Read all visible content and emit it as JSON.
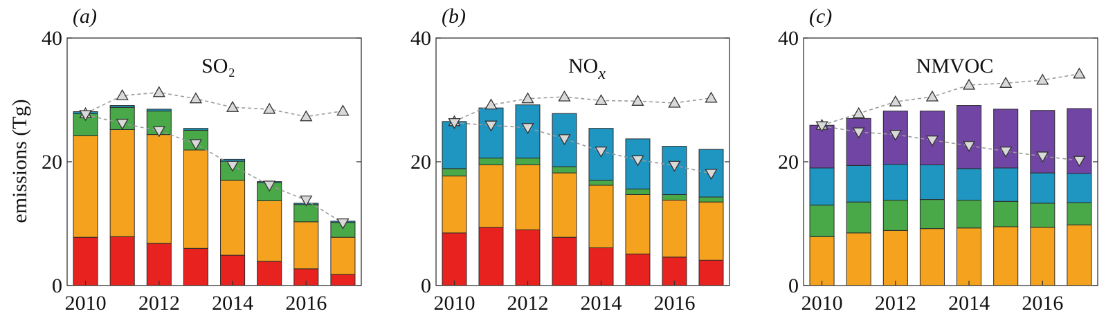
{
  "y_axis_label": "emissions (Tg)",
  "colors": {
    "red": "#e8231f",
    "orange": "#f5a31e",
    "green": "#49a848",
    "blue": "#1f96c2",
    "purple": "#7045a3"
  },
  "chart_data": [
    {
      "type": "bar",
      "stacked": true,
      "panel_label": "(a)",
      "title": "SO₂",
      "x": [
        2010,
        2011,
        2012,
        2013,
        2014,
        2015,
        2016,
        2017
      ],
      "xticks": [
        "2010",
        "2012",
        "2014",
        "2016"
      ],
      "ylim": [
        0,
        40
      ],
      "yticks": [
        "0",
        "20",
        "40"
      ],
      "series": [
        {
          "color": "#e8231f",
          "values": [
            7.8,
            7.9,
            6.8,
            6.0,
            4.9,
            3.9,
            2.7,
            1.8
          ]
        },
        {
          "color": "#f5a31e",
          "values": [
            16.4,
            17.3,
            17.6,
            15.9,
            12.1,
            9.8,
            7.6,
            6.0
          ]
        },
        {
          "color": "#49a848",
          "values": [
            3.6,
            3.6,
            3.8,
            3.2,
            3.1,
            2.9,
            2.8,
            2.4
          ]
        },
        {
          "color": "#1f96c2",
          "values": [
            0.3,
            0.3,
            0.3,
            0.3,
            0.3,
            0.2,
            0.2,
            0.2
          ]
        }
      ],
      "trend_up": [
        27.8,
        30.7,
        31.2,
        30.2,
        28.8,
        28.5,
        27.3,
        28.2
      ],
      "trend_down": [
        27.6,
        26.2,
        25.0,
        22.9,
        19.4,
        16.2,
        13.8,
        10.1
      ]
    },
    {
      "type": "bar",
      "stacked": true,
      "panel_label": "(b)",
      "title": "NO",
      "title_subscript": "x",
      "x": [
        2010,
        2011,
        2012,
        2013,
        2014,
        2015,
        2016,
        2017
      ],
      "xticks": [
        "2010",
        "2012",
        "2014",
        "2016"
      ],
      "ylim": [
        0,
        40
      ],
      "yticks": [
        "0",
        "20",
        "40"
      ],
      "series": [
        {
          "color": "#e8231f",
          "values": [
            8.5,
            9.4,
            9.0,
            7.8,
            6.1,
            5.1,
            4.6,
            4.1
          ]
        },
        {
          "color": "#f5a31e",
          "values": [
            9.2,
            10.1,
            10.5,
            10.4,
            10.1,
            9.6,
            9.2,
            9.4
          ]
        },
        {
          "color": "#49a848",
          "values": [
            1.2,
            1.1,
            1.1,
            1.0,
            0.8,
            0.9,
            0.9,
            0.8
          ]
        },
        {
          "color": "#1f96c2",
          "values": [
            7.6,
            8.1,
            8.6,
            8.6,
            8.4,
            8.1,
            7.8,
            7.7
          ]
        }
      ],
      "trend_up": [
        26.5,
        29.2,
        30.2,
        30.5,
        29.9,
        29.8,
        29.5,
        30.3
      ],
      "trend_down": [
        26.3,
        25.9,
        25.5,
        23.7,
        21.7,
        20.3,
        19.4,
        18.1
      ]
    },
    {
      "type": "bar",
      "stacked": true,
      "panel_label": "(c)",
      "title": "NMVOC",
      "x": [
        2010,
        2011,
        2012,
        2013,
        2014,
        2015,
        2016,
        2017
      ],
      "xticks": [
        "2010",
        "2012",
        "2014",
        "2016"
      ],
      "ylim": [
        0,
        40
      ],
      "yticks": [
        "0",
        "20",
        "40"
      ],
      "series": [
        {
          "color": "#f5a31e",
          "values": [
            7.9,
            8.5,
            8.9,
            9.2,
            9.3,
            9.5,
            9.4,
            9.8
          ]
        },
        {
          "color": "#49a848",
          "values": [
            5.1,
            5.0,
            4.9,
            4.7,
            4.5,
            4.1,
            3.9,
            3.6
          ]
        },
        {
          "color": "#1f96c2",
          "values": [
            6.0,
            5.9,
            5.8,
            5.6,
            5.1,
            5.4,
            4.9,
            4.7
          ]
        },
        {
          "color": "#7045a3",
          "values": [
            6.9,
            7.6,
            8.6,
            8.7,
            10.2,
            9.5,
            10.1,
            10.5
          ]
        }
      ],
      "trend_up": [
        25.9,
        27.8,
        29.7,
        30.5,
        32.4,
        32.7,
        33.2,
        34.2
      ],
      "trend_down": [
        25.8,
        24.8,
        24.4,
        23.5,
        22.6,
        21.7,
        20.9,
        20.2
      ]
    }
  ]
}
